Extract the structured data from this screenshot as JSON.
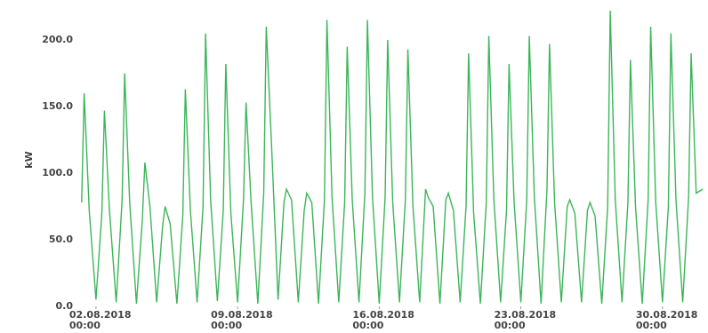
{
  "chart_data": {
    "type": "line",
    "y_label": "kW",
    "color": "#3cb55a",
    "grid": false,
    "xlim": [
      "2018-08-01T03:00",
      "2018-09-01T06:00"
    ],
    "xticks": [
      {
        "value": "2018-08-02T00:00",
        "label": "02.08.2018\n00:00"
      },
      {
        "value": "2018-08-09T00:00",
        "label": "09.08.2018\n00:00"
      },
      {
        "value": "2018-08-16T00:00",
        "label": "16.08.2018\n00:00"
      },
      {
        "value": "2018-08-23T00:00",
        "label": "23.08.2018\n00:00"
      },
      {
        "value": "2018-08-30T00:00",
        "label": "30.08.2018\n00:00"
      }
    ],
    "ylim": [
      0,
      225
    ],
    "yticks": [
      {
        "value": 0,
        "label": "0.0"
      },
      {
        "value": 50,
        "label": "50.0"
      },
      {
        "value": 100,
        "label": "100.0"
      },
      {
        "value": 150,
        "label": "150.0"
      },
      {
        "value": 200,
        "label": "200.0"
      }
    ],
    "x": [
      "2018-08-01T07:00",
      "2018-08-01T10:00",
      "2018-08-01T16:00",
      "2018-08-02T00:00",
      "2018-08-02T07:00",
      "2018-08-02T10:00",
      "2018-08-02T16:00",
      "2018-08-03T00:00",
      "2018-08-03T07:00",
      "2018-08-03T10:00",
      "2018-08-03T16:00",
      "2018-08-04T00:00",
      "2018-08-04T07:00",
      "2018-08-04T10:00",
      "2018-08-04T16:00",
      "2018-08-05T00:00",
      "2018-08-05T07:00",
      "2018-08-05T10:00",
      "2018-08-05T16:00",
      "2018-08-06T00:00",
      "2018-08-06T07:00",
      "2018-08-06T10:00",
      "2018-08-06T16:00",
      "2018-08-07T00:00",
      "2018-08-07T07:00",
      "2018-08-07T10:00",
      "2018-08-07T16:00",
      "2018-08-08T00:00",
      "2018-08-08T07:00",
      "2018-08-08T10:00",
      "2018-08-08T16:00",
      "2018-08-09T00:00",
      "2018-08-09T07:00",
      "2018-08-09T10:00",
      "2018-08-09T16:00",
      "2018-08-10T00:00",
      "2018-08-10T07:00",
      "2018-08-10T10:00",
      "2018-08-10T16:00",
      "2018-08-11T00:00",
      "2018-08-11T07:00",
      "2018-08-11T10:00",
      "2018-08-11T16:00",
      "2018-08-12T00:00",
      "2018-08-12T07:00",
      "2018-08-12T10:00",
      "2018-08-12T16:00",
      "2018-08-13T00:00",
      "2018-08-13T07:00",
      "2018-08-13T10:00",
      "2018-08-13T16:00",
      "2018-08-14T00:00",
      "2018-08-14T07:00",
      "2018-08-14T10:00",
      "2018-08-14T16:00",
      "2018-08-15T00:00",
      "2018-08-15T07:00",
      "2018-08-15T10:00",
      "2018-08-15T16:00",
      "2018-08-16T00:00",
      "2018-08-16T07:00",
      "2018-08-16T10:00",
      "2018-08-16T16:00",
      "2018-08-17T00:00",
      "2018-08-17T07:00",
      "2018-08-17T10:00",
      "2018-08-17T16:00",
      "2018-08-18T00:00",
      "2018-08-18T07:00",
      "2018-08-18T10:00",
      "2018-08-18T16:00",
      "2018-08-19T00:00",
      "2018-08-19T07:00",
      "2018-08-19T10:00",
      "2018-08-19T16:00",
      "2018-08-20T00:00",
      "2018-08-20T07:00",
      "2018-08-20T10:00",
      "2018-08-20T16:00",
      "2018-08-21T00:00",
      "2018-08-21T07:00",
      "2018-08-21T10:00",
      "2018-08-21T16:00",
      "2018-08-22T00:00",
      "2018-08-22T07:00",
      "2018-08-22T10:00",
      "2018-08-22T16:00",
      "2018-08-23T00:00",
      "2018-08-23T07:00",
      "2018-08-23T10:00",
      "2018-08-23T16:00",
      "2018-08-24T00:00",
      "2018-08-24T07:00",
      "2018-08-24T10:00",
      "2018-08-24T16:00",
      "2018-08-25T00:00",
      "2018-08-25T07:00",
      "2018-08-25T10:00",
      "2018-08-25T16:00",
      "2018-08-26T00:00",
      "2018-08-26T07:00",
      "2018-08-26T10:00",
      "2018-08-26T16:00",
      "2018-08-27T00:00",
      "2018-08-27T07:00",
      "2018-08-27T10:00",
      "2018-08-27T16:00",
      "2018-08-28T00:00",
      "2018-08-28T07:00",
      "2018-08-28T10:00",
      "2018-08-28T16:00",
      "2018-08-29T00:00",
      "2018-08-29T07:00",
      "2018-08-29T10:00",
      "2018-08-29T16:00",
      "2018-08-30T00:00",
      "2018-08-30T07:00",
      "2018-08-30T10:00",
      "2018-08-30T16:00",
      "2018-08-31T00:00",
      "2018-08-31T07:00",
      "2018-08-31T10:00",
      "2018-08-31T16:00",
      "2018-09-01T00:00"
    ],
    "values": [
      78,
      160,
      72,
      5,
      70,
      147,
      72,
      3,
      80,
      175,
      78,
      2,
      65,
      108,
      75,
      3,
      60,
      75,
      62,
      2,
      68,
      163,
      72,
      3,
      75,
      205,
      80,
      4,
      72,
      182,
      70,
      3,
      80,
      153,
      78,
      2,
      85,
      210,
      125,
      5,
      78,
      88,
      80,
      3,
      72,
      85,
      78,
      2,
      80,
      215,
      82,
      3,
      78,
      195,
      80,
      3,
      85,
      215,
      82,
      2,
      82,
      200,
      78,
      3,
      80,
      193,
      75,
      3,
      88,
      82,
      75,
      2,
      80,
      85,
      72,
      3,
      75,
      190,
      70,
      2,
      78,
      203,
      80,
      3,
      72,
      182,
      78,
      3,
      80,
      203,
      82,
      2,
      88,
      197,
      78,
      3,
      75,
      80,
      70,
      3,
      72,
      78,
      68,
      2,
      75,
      222,
      80,
      3,
      78,
      185,
      75,
      2,
      80,
      210,
      78,
      3,
      75,
      205,
      80,
      3,
      82,
      190,
      85,
      88
    ]
  }
}
